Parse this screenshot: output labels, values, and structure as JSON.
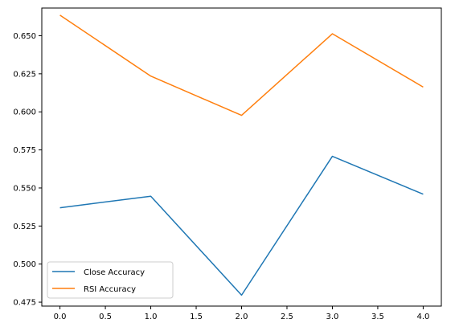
{
  "chart_data": {
    "type": "line",
    "title": "",
    "xlabel": "",
    "ylabel": "",
    "xlim": [
      -0.2,
      4.2
    ],
    "ylim": [
      0.4724,
      0.6682
    ],
    "xticks": [
      "0.0",
      "0.5",
      "1.0",
      "1.5",
      "2.0",
      "2.5",
      "3.0",
      "3.5",
      "4.0"
    ],
    "yticks": [
      "0.475",
      "0.500",
      "0.525",
      "0.550",
      "0.575",
      "0.600",
      "0.625",
      "0.650"
    ],
    "grid": false,
    "legend_position": "lower-left",
    "x": [
      0,
      1,
      2,
      3,
      4
    ],
    "series": [
      {
        "name": "Close Accuracy",
        "color": "#1f77b4",
        "values": [
          0.537,
          0.5446,
          0.4796,
          0.5708,
          0.5459
        ]
      },
      {
        "name": "RSI Accuracy",
        "color": "#ff7f0e",
        "values": [
          0.6635,
          0.6235,
          0.5977,
          0.6513,
          0.6163
        ]
      }
    ]
  }
}
